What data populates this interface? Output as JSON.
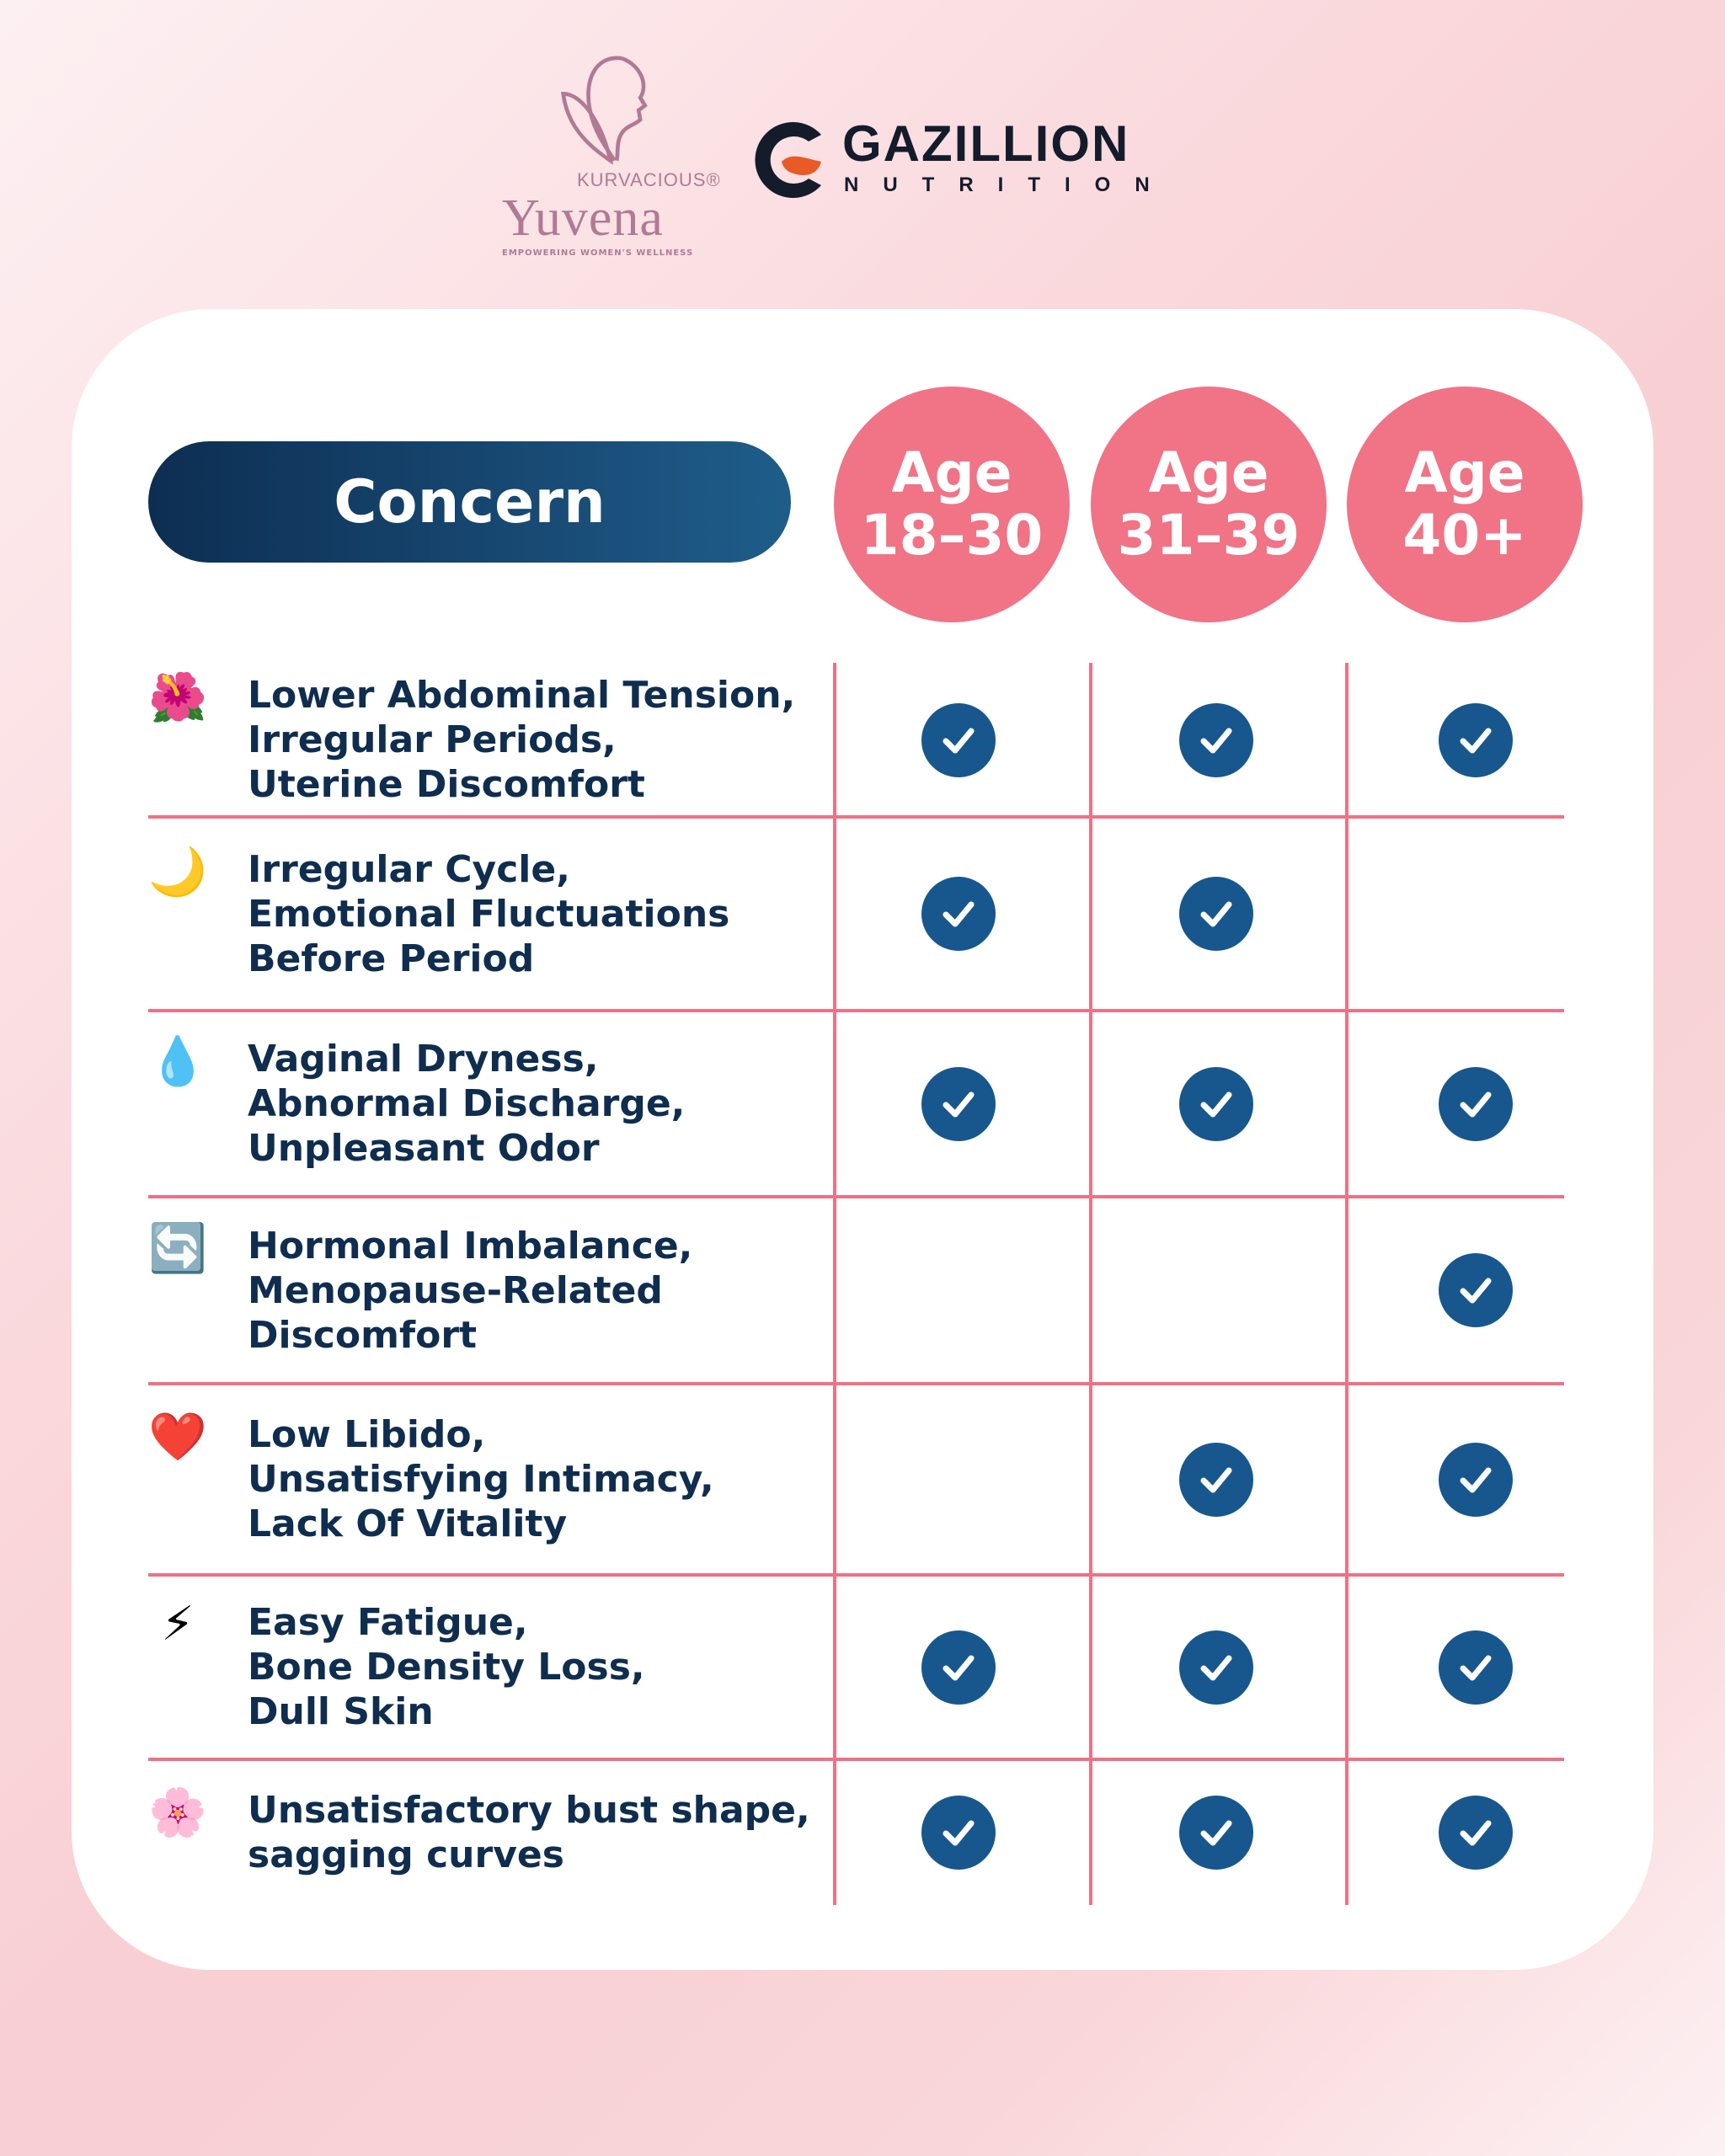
{
  "logos": {
    "yuvena": {
      "brand": "KURVACIOUS®",
      "name": "Yuvena",
      "tagline": "EMPOWERING WOMEN'S WELLNESS"
    },
    "gazillion": {
      "name": "GAZILLION",
      "sub": "NUTRITION"
    }
  },
  "header": {
    "concern": "Concern",
    "ages": [
      {
        "l1": "Age",
        "l2": "18–30"
      },
      {
        "l1": "Age",
        "l2": "31–39"
      },
      {
        "l1": "Age",
        "l2": "40+"
      }
    ]
  },
  "colors": {
    "pink": "#f07386",
    "navy": "#0f2d4f",
    "check": "#17578e"
  },
  "rows": [
    {
      "icon": "🌺",
      "icon_name": "hibiscus",
      "lines": [
        "Lower Abdominal Tension,",
        "Irregular Periods,",
        "Uterine Discomfort"
      ],
      "checks": [
        true,
        true,
        true
      ]
    },
    {
      "icon": "🌙",
      "icon_name": "crescent-moon",
      "lines": [
        "Irregular Cycle,",
        "Emotional Fluctuations",
        "Before Period"
      ],
      "checks": [
        true,
        true,
        false
      ]
    },
    {
      "icon": "💧",
      "icon_name": "droplet",
      "lines": [
        "Vaginal Dryness,",
        "Abnormal Discharge,",
        "Unpleasant Odor"
      ],
      "checks": [
        true,
        true,
        true
      ]
    },
    {
      "icon": "🔄",
      "icon_name": "cycle-arrows",
      "lines": [
        "Hormonal Imbalance,",
        "Menopause-Related",
        "Discomfort"
      ],
      "checks": [
        false,
        false,
        true
      ]
    },
    {
      "icon": "❤️",
      "icon_name": "heart",
      "lines": [
        "Low Libido,",
        "Unsatisfying Intimacy,",
        "Lack Of Vitality"
      ],
      "checks": [
        false,
        true,
        true
      ]
    },
    {
      "icon": "⚡",
      "icon_name": "lightning",
      "lines": [
        "Easy Fatigue,",
        "Bone Density Loss,",
        "Dull Skin"
      ],
      "checks": [
        true,
        true,
        true
      ]
    },
    {
      "icon": "🌸",
      "icon_name": "cherry-blossom",
      "lines": [
        "Unsatisfactory bust shape,",
        "sagging curves"
      ],
      "checks": [
        true,
        true,
        true
      ]
    }
  ]
}
